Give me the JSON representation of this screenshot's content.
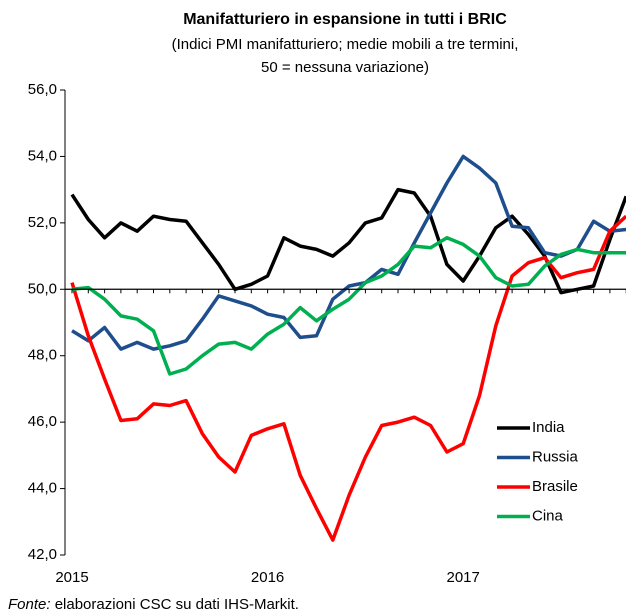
{
  "chart_data": {
    "type": "line",
    "title": "Manifatturiero in espansione in tutti i BRIC",
    "subtitle": [
      "(Indici PMI manifatturiero; medie mobili a tre termini,",
      "50 = nessuna variazione)"
    ],
    "categories": [
      "2015",
      null,
      null,
      null,
      null,
      null,
      null,
      null,
      null,
      null,
      null,
      null,
      "2016",
      null,
      null,
      null,
      null,
      null,
      null,
      null,
      null,
      null,
      null,
      null,
      "2017",
      null,
      null,
      null,
      null,
      null,
      null,
      null,
      null,
      null,
      null
    ],
    "ylim": [
      42,
      56
    ],
    "yticks": [
      {
        "value": 42,
        "label": "42,0"
      },
      {
        "value": 44,
        "label": "44,0"
      },
      {
        "value": 46,
        "label": "46,0"
      },
      {
        "value": 48,
        "label": "48,0"
      },
      {
        "value": 50,
        "label": "50,0"
      },
      {
        "value": 52,
        "label": "52,0"
      },
      {
        "value": 54,
        "label": "54,0"
      },
      {
        "value": 56,
        "label": "56,0"
      }
    ],
    "legend": "lower right",
    "series": [
      {
        "name": "India",
        "color": "#000000",
        "values": [
          52.85,
          52.1,
          51.55,
          52.0,
          51.75,
          52.2,
          52.1,
          52.05,
          51.4,
          50.75,
          50.0,
          50.15,
          50.4,
          51.55,
          51.3,
          51.2,
          51.0,
          51.4,
          52.0,
          52.15,
          53.0,
          52.9,
          52.2,
          50.75,
          50.25,
          51.0,
          51.85,
          52.2,
          51.65,
          51.0,
          49.9,
          50.0,
          50.1,
          51.5,
          52.8
        ]
      },
      {
        "name": "Russia",
        "color": "#1f4e8c",
        "values": [
          48.75,
          48.45,
          48.85,
          48.2,
          48.4,
          48.2,
          48.3,
          48.45,
          49.1,
          49.8,
          49.65,
          49.5,
          49.25,
          49.15,
          48.55,
          48.6,
          49.7,
          50.1,
          50.2,
          50.6,
          50.45,
          51.4,
          52.3,
          53.2,
          54.0,
          53.65,
          53.2,
          51.9,
          51.85,
          51.1,
          51.0,
          51.2,
          52.05,
          51.75,
          51.8
        ]
      },
      {
        "name": "Brasile",
        "color": "#ff0000",
        "values": [
          50.2,
          48.6,
          47.3,
          46.05,
          46.1,
          46.55,
          46.5,
          46.65,
          45.65,
          44.95,
          44.5,
          45.6,
          45.8,
          45.95,
          44.4,
          43.4,
          42.45,
          43.8,
          44.95,
          45.9,
          46.0,
          46.15,
          45.9,
          45.1,
          45.35,
          46.8,
          48.9,
          50.4,
          50.8,
          50.95,
          50.35,
          50.5,
          50.6,
          51.75,
          52.2
        ]
      },
      {
        "name": "Cina",
        "color": "#00b050",
        "values": [
          50.0,
          50.05,
          49.7,
          49.2,
          49.1,
          48.75,
          47.45,
          47.6,
          48.0,
          48.35,
          48.4,
          48.2,
          48.65,
          48.95,
          49.45,
          49.05,
          49.4,
          49.7,
          50.2,
          50.4,
          50.75,
          51.3,
          51.25,
          51.55,
          51.35,
          51.0,
          50.35,
          50.1,
          50.15,
          50.7,
          51.05,
          51.2,
          51.1,
          51.1,
          51.1
        ]
      }
    ],
    "source_label": "Fonte:",
    "source": " elaborazioni CSC su dati IHS-Markit."
  }
}
